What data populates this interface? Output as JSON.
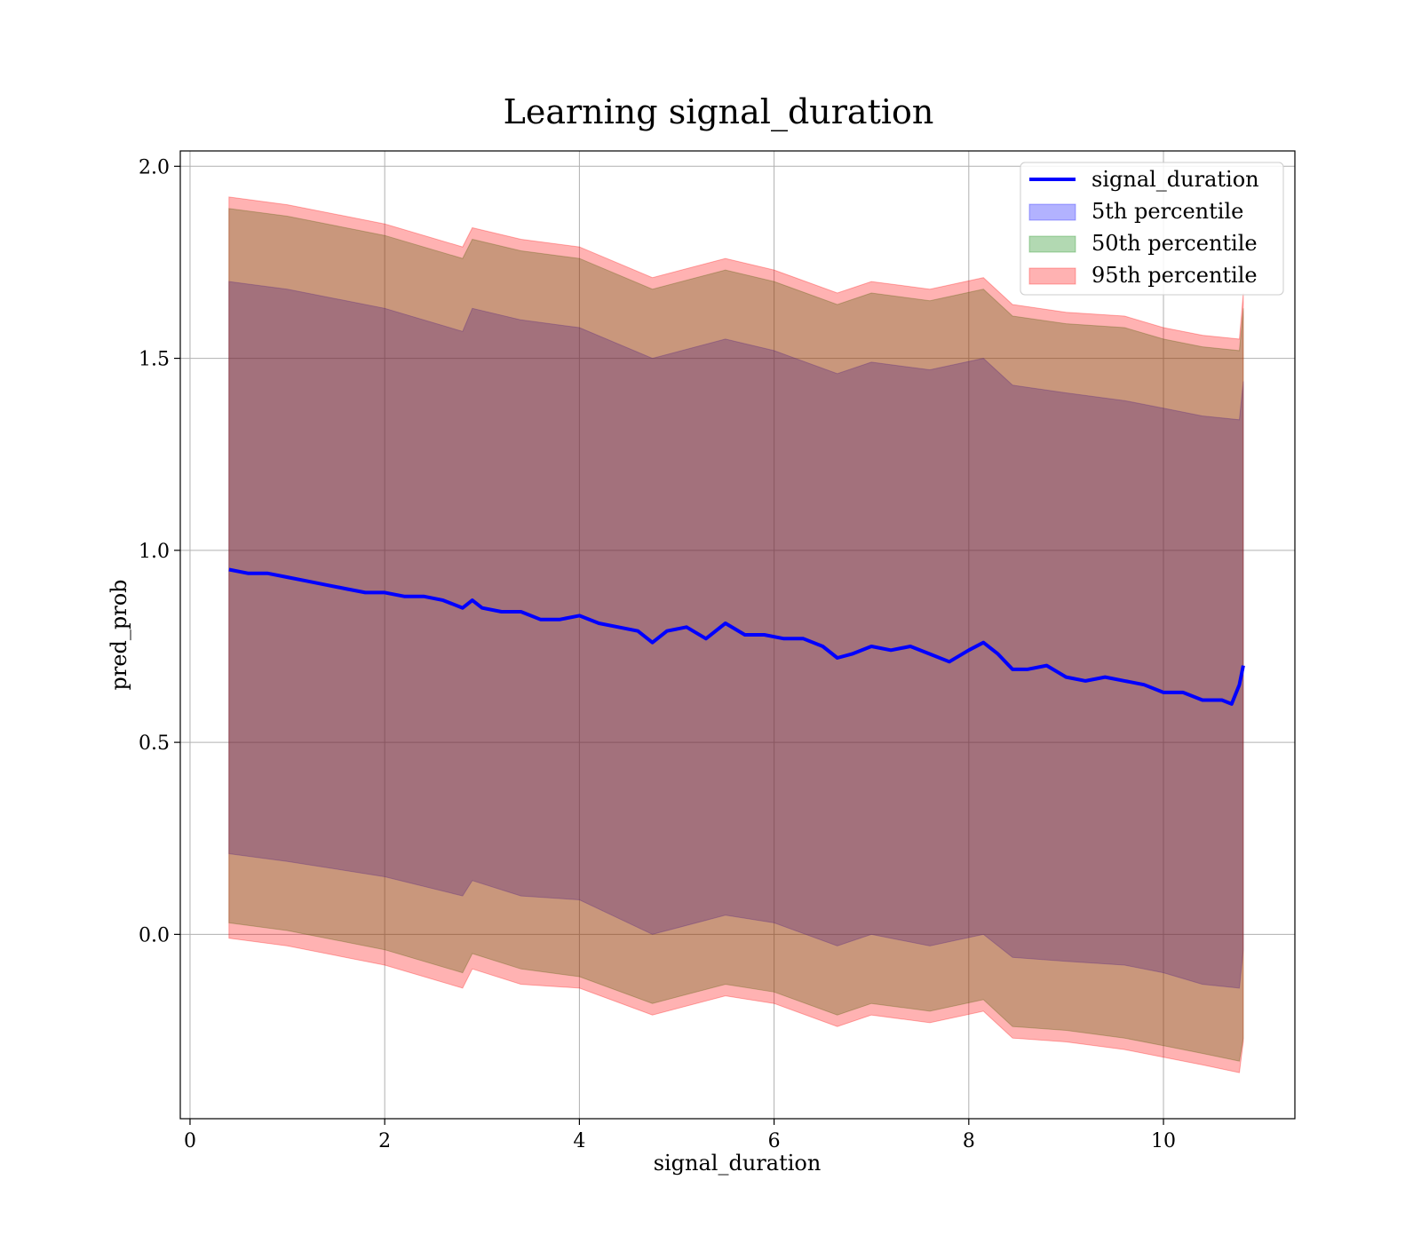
{
  "chart_data": {
    "type": "line",
    "title": "Learning signal_duration",
    "xlabel": "signal_duration",
    "ylabel": "pred_prob",
    "xlim": [
      -0.1,
      11.35
    ],
    "ylim": [
      -0.48,
      2.04
    ],
    "xticks": [
      0,
      2,
      4,
      6,
      8,
      10
    ],
    "xtick_labels": [
      "0",
      "2",
      "4",
      "6",
      "8",
      "10"
    ],
    "yticks": [
      0.0,
      0.5,
      1.0,
      1.5,
      2.0
    ],
    "ytick_labels": [
      "0.0",
      "0.5",
      "1.0",
      "1.5",
      "2.0"
    ],
    "grid": true,
    "legend_position": "top-right",
    "colors": {
      "line": "#0000ff",
      "band_5th": "#0000ff",
      "band_50th": "#008000",
      "band_95th": "#ff0000"
    },
    "series": [
      {
        "name": "signal_duration",
        "kind": "line",
        "x": [
          0.4,
          0.6,
          0.8,
          1.0,
          1.2,
          1.4,
          1.6,
          1.8,
          2.0,
          2.2,
          2.4,
          2.6,
          2.8,
          2.9,
          3.0,
          3.2,
          3.4,
          3.6,
          3.8,
          4.0,
          4.2,
          4.4,
          4.6,
          4.75,
          4.9,
          5.1,
          5.3,
          5.5,
          5.7,
          5.9,
          6.1,
          6.3,
          6.5,
          6.65,
          6.8,
          7.0,
          7.2,
          7.4,
          7.6,
          7.8,
          8.0,
          8.15,
          8.3,
          8.45,
          8.6,
          8.8,
          9.0,
          9.2,
          9.4,
          9.6,
          9.8,
          10.0,
          10.2,
          10.4,
          10.6,
          10.7,
          10.78,
          10.82
        ],
        "values": [
          0.95,
          0.94,
          0.94,
          0.93,
          0.92,
          0.91,
          0.9,
          0.89,
          0.89,
          0.88,
          0.88,
          0.87,
          0.85,
          0.87,
          0.85,
          0.84,
          0.84,
          0.82,
          0.82,
          0.83,
          0.81,
          0.8,
          0.79,
          0.76,
          0.79,
          0.8,
          0.77,
          0.81,
          0.78,
          0.78,
          0.77,
          0.77,
          0.75,
          0.72,
          0.73,
          0.75,
          0.74,
          0.75,
          0.73,
          0.71,
          0.74,
          0.76,
          0.73,
          0.69,
          0.69,
          0.7,
          0.67,
          0.66,
          0.67,
          0.66,
          0.65,
          0.63,
          0.63,
          0.61,
          0.61,
          0.6,
          0.65,
          0.7
        ]
      },
      {
        "name": "5th percentile",
        "kind": "band",
        "x": [
          0.4,
          1.0,
          2.0,
          2.8,
          2.9,
          3.4,
          4.0,
          4.75,
          5.5,
          6.0,
          6.65,
          7.0,
          7.6,
          8.15,
          8.45,
          9.0,
          9.6,
          10.0,
          10.4,
          10.78,
          10.82
        ],
        "lower": [
          0.21,
          0.19,
          0.15,
          0.1,
          0.14,
          0.1,
          0.09,
          0.0,
          0.05,
          0.03,
          -0.03,
          0.0,
          -0.03,
          0.0,
          -0.06,
          -0.07,
          -0.08,
          -0.1,
          -0.13,
          -0.14,
          -0.04
        ],
        "upper": [
          1.7,
          1.68,
          1.63,
          1.57,
          1.63,
          1.6,
          1.58,
          1.5,
          1.55,
          1.52,
          1.46,
          1.49,
          1.47,
          1.5,
          1.43,
          1.41,
          1.39,
          1.37,
          1.35,
          1.34,
          1.44
        ]
      },
      {
        "name": "50th percentile",
        "kind": "band",
        "x": [
          0.4,
          1.0,
          2.0,
          2.8,
          2.9,
          3.4,
          4.0,
          4.75,
          5.5,
          6.0,
          6.65,
          7.0,
          7.6,
          8.15,
          8.45,
          9.0,
          9.6,
          10.0,
          10.4,
          10.78,
          10.82
        ],
        "lower": [
          0.03,
          0.01,
          -0.04,
          -0.1,
          -0.05,
          -0.09,
          -0.11,
          -0.18,
          -0.13,
          -0.15,
          -0.21,
          -0.18,
          -0.2,
          -0.17,
          -0.24,
          -0.25,
          -0.27,
          -0.29,
          -0.31,
          -0.33,
          -0.27
        ],
        "upper": [
          1.89,
          1.87,
          1.82,
          1.76,
          1.81,
          1.78,
          1.76,
          1.68,
          1.73,
          1.7,
          1.64,
          1.67,
          1.65,
          1.68,
          1.61,
          1.59,
          1.58,
          1.55,
          1.53,
          1.52,
          1.63
        ]
      },
      {
        "name": "95th percentile",
        "kind": "band",
        "x": [
          0.4,
          1.0,
          2.0,
          2.8,
          2.9,
          3.4,
          4.0,
          4.75,
          5.5,
          6.0,
          6.65,
          7.0,
          7.6,
          8.15,
          8.45,
          9.0,
          9.6,
          10.0,
          10.4,
          10.78,
          10.82
        ],
        "lower": [
          -0.01,
          -0.03,
          -0.08,
          -0.14,
          -0.09,
          -0.13,
          -0.14,
          -0.21,
          -0.16,
          -0.18,
          -0.24,
          -0.21,
          -0.23,
          -0.2,
          -0.27,
          -0.28,
          -0.3,
          -0.32,
          -0.34,
          -0.36,
          -0.28
        ],
        "upper": [
          1.92,
          1.9,
          1.85,
          1.79,
          1.84,
          1.81,
          1.79,
          1.71,
          1.76,
          1.73,
          1.67,
          1.7,
          1.68,
          1.71,
          1.64,
          1.62,
          1.61,
          1.58,
          1.56,
          1.55,
          1.67
        ]
      }
    ]
  }
}
